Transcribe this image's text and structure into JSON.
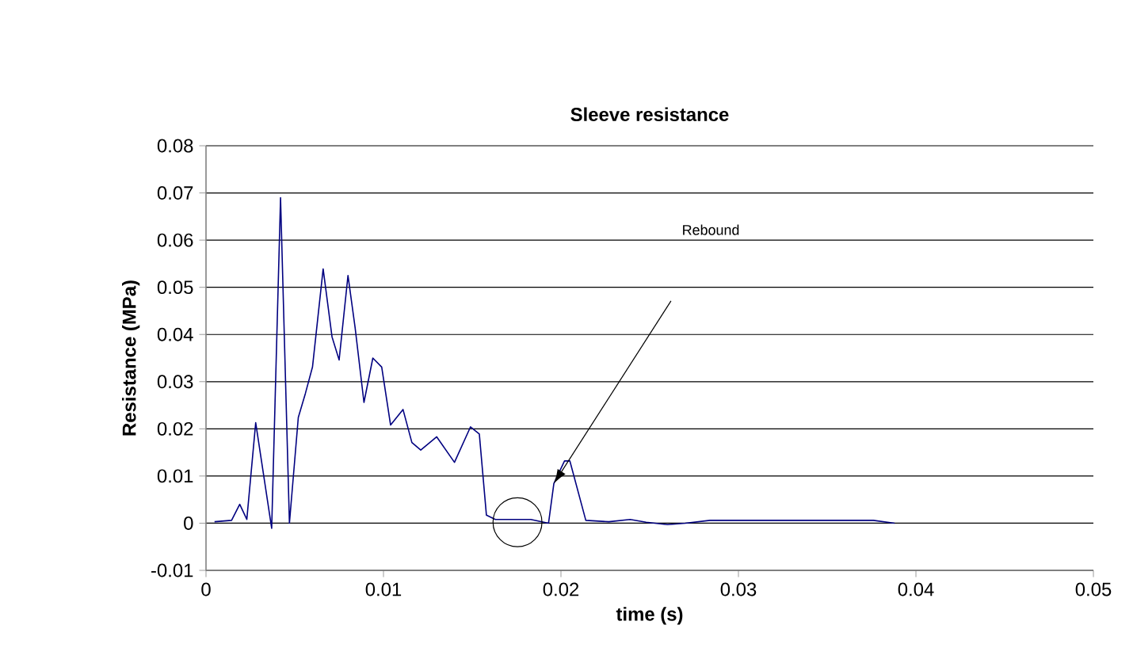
{
  "chart_data": {
    "type": "line",
    "title": "Sleeve resistance",
    "xlabel": "time (s)",
    "ylabel": "Resistance (MPa)",
    "x": [
      0.00048,
      0.00144,
      0.0019,
      0.0023,
      0.0028,
      0.0037,
      0.0042,
      0.0047,
      0.0052,
      0.0056,
      0.006,
      0.0066,
      0.0071,
      0.0075,
      0.008,
      0.0084,
      0.0089,
      0.0094,
      0.0099,
      0.0104,
      0.0111,
      0.0116,
      0.0121,
      0.013,
      0.014,
      0.0149,
      0.0154,
      0.0158,
      0.0163,
      0.0183,
      0.0193,
      0.0196,
      0.0202,
      0.0205,
      0.0214,
      0.0227,
      0.0239,
      0.0248,
      0.026,
      0.027,
      0.0284,
      0.03,
      0.035,
      0.0376,
      0.0388
    ],
    "series": [
      {
        "color": "#000080",
        "values": [
          0.0003,
          0.0006,
          0.004,
          0.0008,
          0.0213,
          -0.0011,
          0.069,
          0,
          0.0224,
          0.0275,
          0.0331,
          0.0539,
          0.0395,
          0.0346,
          0.0525,
          0.0415,
          0.0256,
          0.035,
          0.0331,
          0.0208,
          0.0241,
          0.0171,
          0.0155,
          0.0183,
          0.0129,
          0.0204,
          0.0189,
          0.0017,
          0.0008,
          0.0008,
          0,
          0.0084,
          0.0132,
          0.0132,
          0.0006,
          0.0003,
          0.0008,
          0.0002,
          -0.0003,
          0,
          0.0006,
          0.0006,
          0.0006,
          0.0006,
          0
        ]
      }
    ],
    "xlim": [
      0,
      0.05
    ],
    "ylim": [
      -0.01,
      0.08
    ],
    "xticks": [
      0,
      0.01,
      0.02,
      0.03,
      0.04,
      0.05
    ],
    "yticks": [
      -0.01,
      0,
      0.01,
      0.02,
      0.03,
      0.04,
      0.05,
      0.06,
      0.07,
      0.08
    ],
    "grid": "y",
    "marker": "none",
    "line_style": "solid",
    "annotations": [
      "Rebound"
    ]
  }
}
